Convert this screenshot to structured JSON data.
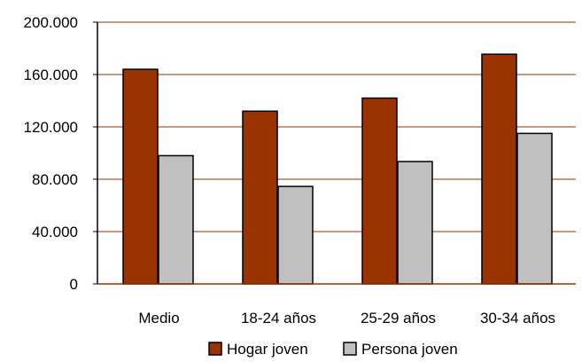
{
  "chart_data": {
    "type": "bar",
    "categories": [
      "Medio",
      "18-24 años",
      "25-29 años",
      "30-34 años"
    ],
    "series": [
      {
        "name": "Hogar joven",
        "values": [
          164000,
          132000,
          142000,
          175500
        ],
        "color": "#993300"
      },
      {
        "name": "Persona joven",
        "values": [
          98000,
          74500,
          93500,
          115000
        ],
        "color": "#C0C0C0"
      }
    ],
    "yticks": [
      {
        "value": 0,
        "label": "0"
      },
      {
        "value": 40000,
        "label": "40.000"
      },
      {
        "value": 80000,
        "label": "80.000"
      },
      {
        "value": 120000,
        "label": "120.000"
      },
      {
        "value": 160000,
        "label": "160.000"
      },
      {
        "value": 200000,
        "label": "200.000"
      }
    ],
    "ylim": [
      0,
      200000
    ],
    "grid": true,
    "grid_color": "#993300",
    "legend_position": "bottom"
  }
}
